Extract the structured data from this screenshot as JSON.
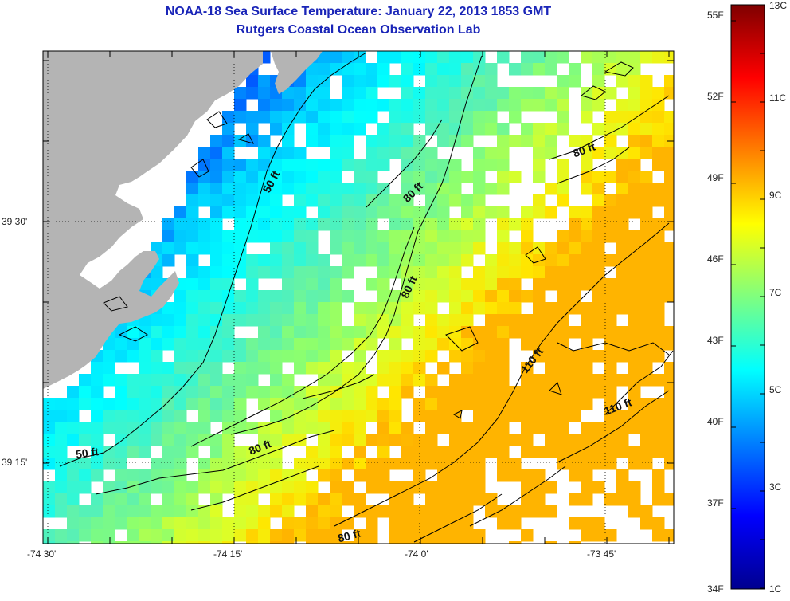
{
  "title": "NOAA-18 Sea Surface Temperature:  January 22, 2013 1853 GMT",
  "subtitle": "Rutgers Coastal Ocean Observation Lab",
  "axes": {
    "x_ticks": [
      "-74 30'",
      "-74 15'",
      "-74 0'",
      "-73 45'"
    ],
    "y_ticks": [
      "39 30'",
      "39 15'"
    ],
    "grid": true
  },
  "colorbar": {
    "f_labels": [
      "55F",
      "52F",
      "49F",
      "46F",
      "43F",
      "40F",
      "37F",
      "34F"
    ],
    "c_labels": [
      "13C",
      "11C",
      "9C",
      "7C",
      "5C",
      "3C",
      "1C"
    ],
    "c_min": 1,
    "c_max": 13,
    "colors": [
      "#00008f",
      "#0000ff",
      "#007fff",
      "#00ffff",
      "#7fff7f",
      "#ffff00",
      "#ff7f00",
      "#ff0000",
      "#7f0000"
    ]
  },
  "land_color": "#b4b4b4",
  "contour_labels": [
    "50 ft",
    "80 ft",
    "80 ft",
    "80 ft",
    "110 ft",
    "110 ft",
    "50 ft",
    "80 ft",
    "80 ft"
  ]
}
